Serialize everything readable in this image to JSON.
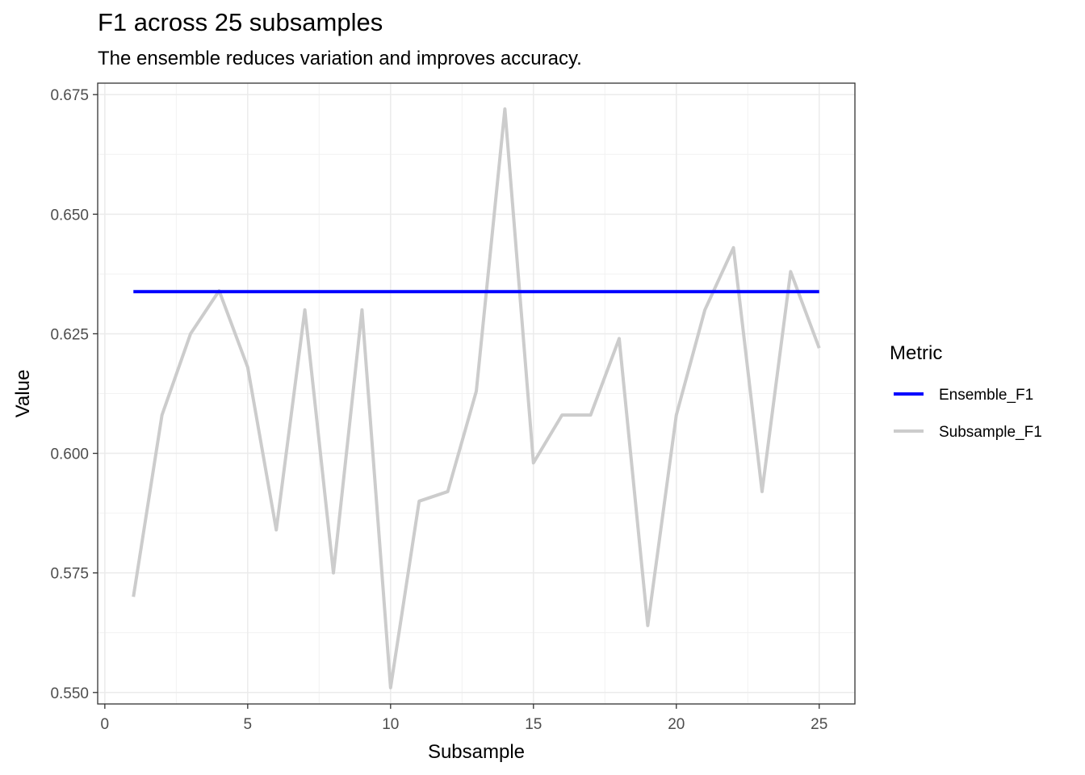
{
  "title": "F1 across 25 subsamples",
  "subtitle": "The ensemble reduces variation and improves accuracy.",
  "chart_data": {
    "type": "line",
    "title": "F1 across 25 subsamples",
    "subtitle": "The ensemble reduces variation and improves accuracy.",
    "xlabel": "Subsample",
    "ylabel": "Value",
    "xlim": [
      -0.25,
      26.25
    ],
    "ylim": [
      0.5476,
      0.6774
    ],
    "xticks": [
      0,
      5,
      10,
      15,
      20,
      25
    ],
    "xtick_labels": [
      "0",
      "5",
      "10",
      "15",
      "20",
      "25"
    ],
    "yticks": [
      0.55,
      0.575,
      0.6,
      0.625,
      0.65,
      0.675
    ],
    "ytick_labels": [
      "0.550",
      "0.575",
      "0.600",
      "0.625",
      "0.650",
      "0.675"
    ],
    "grid": true,
    "legend": {
      "title": "Metric",
      "position": "right"
    },
    "series": [
      {
        "name": "Ensemble_F1",
        "color": "#0000ff",
        "x": [
          1,
          25
        ],
        "y": [
          0.6338,
          0.6338
        ]
      },
      {
        "name": "Subsample_F1",
        "color": "#cccccc",
        "x": [
          1,
          2,
          3,
          4,
          5,
          6,
          7,
          8,
          9,
          10,
          11,
          12,
          13,
          14,
          15,
          16,
          17,
          18,
          19,
          20,
          21,
          22,
          23,
          24,
          25
        ],
        "y": [
          0.57,
          0.608,
          0.625,
          0.634,
          0.618,
          0.584,
          0.63,
          0.575,
          0.63,
          0.551,
          0.59,
          0.592,
          0.613,
          0.672,
          0.598,
          0.608,
          0.608,
          0.624,
          0.564,
          0.608,
          0.63,
          0.643,
          0.592,
          0.638,
          0.622
        ]
      }
    ]
  }
}
